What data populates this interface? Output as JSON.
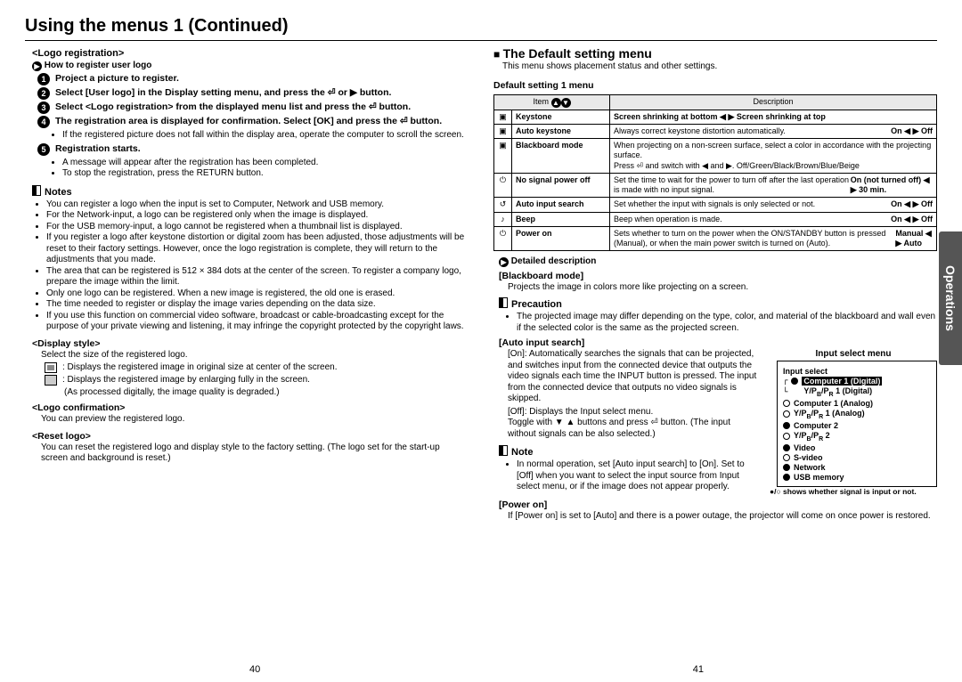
{
  "title": "Using the menus 1 (Continued)",
  "sideTab": "Operations",
  "pageLeft": "40",
  "pageRight": "41",
  "left": {
    "logoReg": "<Logo registration>",
    "howTo": "How to register user logo",
    "steps": [
      "Project a picture to register.",
      "Select [User logo] in the Display setting menu, and press the ⏎ or ▶ button.",
      "Select <Logo registration> from the displayed menu list and press the ⏎ button.",
      "The registration area is displayed for confirmation. Select [OK] and press the ⏎ button.",
      "Registration starts."
    ],
    "step4bullets": [
      "If the registered picture does not fall within the display area, operate the computer to scroll the screen."
    ],
    "step5bullets": [
      "A message will appear after the registration has been completed.",
      "To stop the registration, press the RETURN button."
    ],
    "notesHd": "Notes",
    "notes": [
      "You can register a logo when the input is set to Computer, Network and USB memory.",
      "For the Network-input, a logo can be registered only when the image is displayed.",
      "For the USB memory-input, a logo cannot be registered when a thumbnail list is displayed.",
      "If you register a logo after keystone distortion or digital zoom has been adjusted, those adjustments will be reset to their factory settings. However, once the logo registration is complete, they will return to the adjustments that you made.",
      "The area that can be registered is 512 × 384 dots at the center of the screen. To register a company logo, prepare the image within the limit.",
      "Only one logo can be registered. When a new image is registered, the old one is erased.",
      "The time needed to register or display the image varies depending on the data size.",
      "If you use this function on commercial video software, broadcast or cable-broadcasting except for the purpose of your private viewing and listening, it may infringe the copyright protected by the copyright laws."
    ],
    "dispStyle": "<Display style>",
    "dispStyleP": "Select the size of the registered logo.",
    "ds1": ": Displays the registered image in original size at center of the screen.",
    "ds2": ": Displays the registered image by enlarging fully in the screen.",
    "ds2b": "(As processed digitally, the image quality is degraded.)",
    "logoConf": "<Logo confirmation>",
    "logoConfP": "You can preview the registered logo.",
    "resetLogo": "<Reset logo>",
    "resetLogoP": "You can reset the registered logo and display style to the factory setting. (The logo set for the start-up screen and background is reset.)"
  },
  "right": {
    "sectionTitle": "The Default setting menu",
    "sectionDesc": "This menu shows placement status and other settings.",
    "tableTitle": "Default setting 1 menu",
    "thItem": "Item",
    "thDesc": "Description",
    "rows": [
      {
        "icon": "▣",
        "item": "Keystone",
        "desc": "Screen shrinking at bottom ◀ ▶ Screen shrinking at top",
        "bold": true
      },
      {
        "icon": "▣",
        "item": "Auto keystone",
        "desc": "Always correct keystone distortion automatically.",
        "extra": "On ◀ ▶ Off"
      },
      {
        "icon": "▣",
        "item": "Blackboard mode",
        "desc": "When projecting on a non-screen surface, select a color in accordance with the projecting surface.\nPress ⏎ and switch with ◀ and ▶.   Off/Green/Black/Brown/Blue/Beige"
      },
      {
        "icon": "⏻",
        "item": "No signal power off",
        "desc": "Set the time to wait for the power to turn off after the last operation is made with no input signal.",
        "extra": "On (not turned off) ◀ ▶ 30 min."
      },
      {
        "icon": "↺",
        "item": "Auto input search",
        "desc": "Set whether the input with signals is only selected or not.",
        "extra": "On ◀ ▶ Off"
      },
      {
        "icon": "♪",
        "item": "Beep",
        "desc": "Beep when operation is made.",
        "extra": "On ◀ ▶ Off"
      },
      {
        "icon": "⏻",
        "item": "Power on",
        "desc": "Sets whether to turn on the power when the ON/STANDBY button is pressed (Manual), or when the main power switch is turned on (Auto).",
        "extra": "Manual ◀ ▶ Auto"
      }
    ],
    "detDesc": "Detailed description",
    "bbMode": "[Blackboard mode]",
    "bbModeP": "Projects the image in colors more like projecting on a screen.",
    "precHd": "Precaution",
    "prec": "The projected image may differ depending on the type, color, and material of the blackboard and wall even if the selected color is the same as the projected screen.",
    "ais": "[Auto input search]",
    "aisOn": "[On]: Automatically searches the signals that can be projected, and switches input from the connected device that outputs the video signals each time the INPUT button is pressed. The input from the connected device that outputs no video signals is skipped.",
    "aisOff": "[Off]: Displays the Input select menu.\nToggle with ▼ ▲ buttons and press ⏎ button. (The input without signals can be also selected.)",
    "inputMenuTitle": "Input select menu",
    "inputMenuSub": "Input select",
    "inputItems": [
      {
        "dot": "fill",
        "label": "Computer 1 (Digital)",
        "hl": true,
        "pre": "┌"
      },
      {
        "dot": "",
        "label": "Y/PB/PR 1 (Digital)",
        "pre": "└"
      },
      {
        "dot": "open",
        "label": "Computer 1 (Analog)"
      },
      {
        "dot": "open",
        "label": "Y/PB/PR 1 (Analog)"
      },
      {
        "dot": "fill",
        "label": "Computer 2"
      },
      {
        "dot": "open",
        "label": "Y/PB/PR 2"
      },
      {
        "dot": "fill",
        "label": "Video"
      },
      {
        "dot": "open",
        "label": "S-video"
      },
      {
        "dot": "fill",
        "label": "Network"
      },
      {
        "dot": "fill",
        "label": "USB memory"
      }
    ],
    "inputNote": "●/○ shows whether signal is input or not.",
    "noteHd": "Note",
    "noteP": "In normal operation, set [Auto input search] to [On]. Set to [Off] when you want to select the input source from Input select menu, or if the image does not appear properly.",
    "powerOn": "[Power on]",
    "powerOnP": "If [Power on] is set to [Auto] and there is a power outage, the projector will come on once power is restored."
  }
}
